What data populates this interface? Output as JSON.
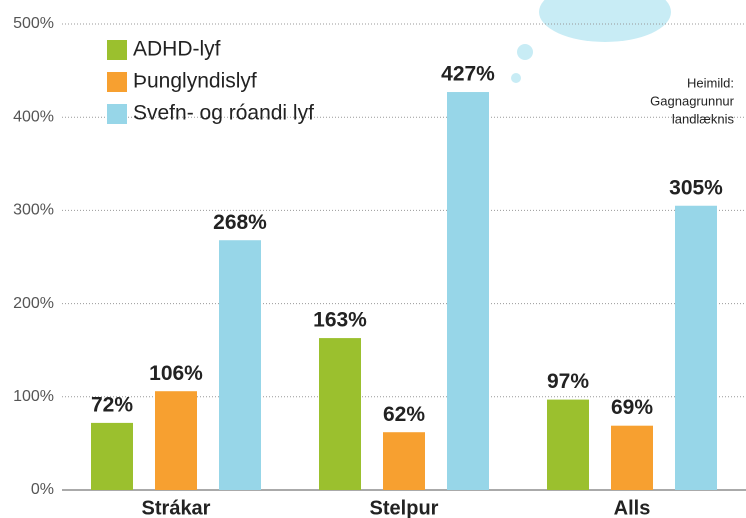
{
  "chart_data": {
    "type": "bar",
    "categories": [
      "Strákar",
      "Stelpur",
      "Alls"
    ],
    "series": [
      {
        "name": "ADHD-lyf",
        "color": "#9bc02e",
        "values": [
          72,
          163,
          97
        ],
        "value_labels": [
          "72%",
          "163%",
          "97%"
        ]
      },
      {
        "name": "Þunglyndislyf",
        "color": "#f7a030",
        "values": [
          106,
          62,
          69
        ],
        "value_labels": [
          "106%",
          "62%",
          "69%"
        ]
      },
      {
        "name": "Svefn- og róandi lyf",
        "color": "#97d6e8",
        "values": [
          268,
          427,
          305
        ],
        "value_labels": [
          "268%",
          "427%",
          "305%"
        ]
      }
    ],
    "ylim": [
      0,
      500
    ],
    "yticks": [
      {
        "value": 0,
        "label": "0%"
      },
      {
        "value": 100,
        "label": "100%"
      },
      {
        "value": 200,
        "label": "200%"
      },
      {
        "value": 300,
        "label": "300%"
      },
      {
        "value": 400,
        "label": "400%"
      },
      {
        "value": 500,
        "label": "500%"
      }
    ],
    "grid": true,
    "legend": "top-left",
    "source": [
      "Heimild:",
      "Gagnagrunnur",
      "landlæknis"
    ]
  }
}
